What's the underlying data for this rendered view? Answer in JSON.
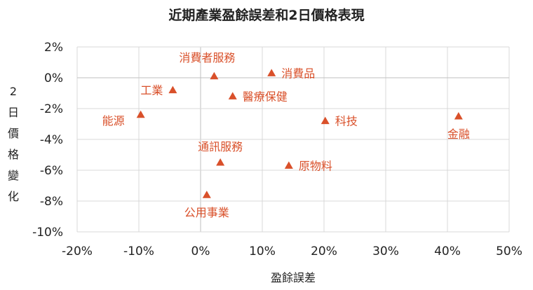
{
  "chart_data": {
    "type": "scatter",
    "title": "近期產業盈餘誤差和2日價格表現",
    "xlabel": "盈餘誤差",
    "ylabel": "2日價格變化",
    "xlim": [
      -20,
      50
    ],
    "ylim": [
      -10,
      2
    ],
    "x_ticks": [
      "-20%",
      "-10%",
      "0%",
      "10%",
      "20%",
      "30%",
      "40%",
      "50%"
    ],
    "y_ticks": [
      "2%",
      "0%",
      "-2%",
      "-4%",
      "-6%",
      "-8%",
      "-10%"
    ],
    "grid": "vertical and horizontal",
    "marker": "triangle",
    "colors": {
      "marker": "#d9502a",
      "label": "#d9502a",
      "grid": "#d9d9d9",
      "axis_zero": "#bfbfbf"
    },
    "points": [
      {
        "label": "消費者服務",
        "x": 2.2,
        "y": 0.1,
        "label_pos": "above-left"
      },
      {
        "label": "消費品",
        "x": 11.5,
        "y": 0.3,
        "label_pos": "right"
      },
      {
        "label": "工業",
        "x": -4.5,
        "y": -0.8,
        "label_pos": "left"
      },
      {
        "label": "醫療保健",
        "x": 5.2,
        "y": -1.2,
        "label_pos": "right"
      },
      {
        "label": "能源",
        "x": -9.7,
        "y": -2.4,
        "label_pos": "left-below"
      },
      {
        "label": "科技",
        "x": 20.2,
        "y": -2.8,
        "label_pos": "right"
      },
      {
        "label": "金融",
        "x": 41.8,
        "y": -2.5,
        "label_pos": "below"
      },
      {
        "label": "通訊服務",
        "x": 3.2,
        "y": -5.5,
        "label_pos": "above"
      },
      {
        "label": "原物料",
        "x": 14.3,
        "y": -5.7,
        "label_pos": "right"
      },
      {
        "label": "公用事業",
        "x": 1.0,
        "y": -7.6,
        "label_pos": "below"
      }
    ]
  }
}
